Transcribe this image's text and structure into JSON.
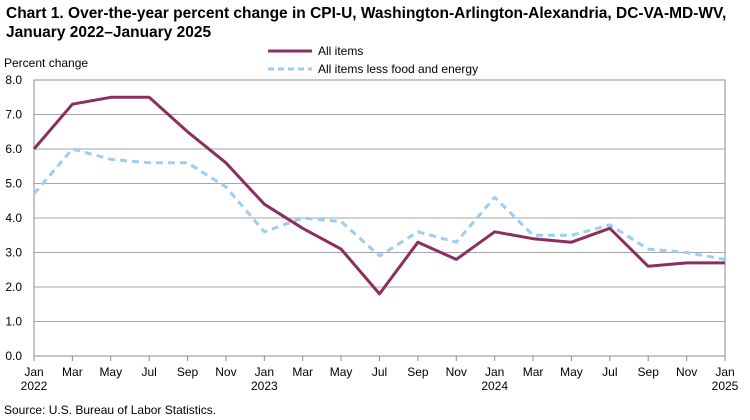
{
  "title": "Chart 1. Over-the-year percent change in CPI-U, Washington-Arlington-Alexandria,  DC-VA-MD-WV, January 2022–January 2025",
  "source": "Source: U.S. Bureau of Labor Statistics.",
  "chart_data": {
    "type": "line",
    "title": "Chart 1. Over-the-year percent change in CPI-U, Washington-Arlington-Alexandria,  DC-VA-MD-WV, January 2022–January 2025",
    "ylabel": "Percent change",
    "xlabel": "",
    "ylim": [
      0,
      8
    ],
    "yticks": [
      "0.0",
      "1.0",
      "2.0",
      "3.0",
      "4.0",
      "5.0",
      "6.0",
      "7.0",
      "8.0"
    ],
    "grid": true,
    "legend_position": "top-center",
    "x": [
      "Jan 2022",
      "Mar 2022",
      "May 2022",
      "Jul 2022",
      "Sep 2022",
      "Nov 2022",
      "Jan 2023",
      "Mar 2023",
      "May 2023",
      "Jul 2023",
      "Sep 2023",
      "Nov 2023",
      "Jan 2024",
      "Mar 2024",
      "May 2024",
      "Jul 2024",
      "Sep 2024",
      "Nov 2024",
      "Jan 2025"
    ],
    "xticks": [
      {
        "month": "Jan",
        "year": "2022"
      },
      {
        "month": "Mar",
        "year": ""
      },
      {
        "month": "May",
        "year": ""
      },
      {
        "month": "Jul",
        "year": ""
      },
      {
        "month": "Sep",
        "year": ""
      },
      {
        "month": "Nov",
        "year": ""
      },
      {
        "month": "Jan",
        "year": "2023"
      },
      {
        "month": "Mar",
        "year": ""
      },
      {
        "month": "May",
        "year": ""
      },
      {
        "month": "Jul",
        "year": ""
      },
      {
        "month": "Sep",
        "year": ""
      },
      {
        "month": "Nov",
        "year": ""
      },
      {
        "month": "Jan",
        "year": "2024"
      },
      {
        "month": "Mar",
        "year": ""
      },
      {
        "month": "May",
        "year": ""
      },
      {
        "month": "Jul",
        "year": ""
      },
      {
        "month": "Sep",
        "year": ""
      },
      {
        "month": "Nov",
        "year": ""
      },
      {
        "month": "Jan",
        "year": "2025"
      }
    ],
    "series": [
      {
        "name": "All items",
        "color": "#8b2f5f",
        "style": "solid",
        "values": [
          6.0,
          7.3,
          7.5,
          7.5,
          6.5,
          5.6,
          4.4,
          3.7,
          3.1,
          1.8,
          3.3,
          2.8,
          3.6,
          3.4,
          3.3,
          3.7,
          2.6,
          2.7,
          2.7
        ]
      },
      {
        "name": "All items less food and energy",
        "color": "#9dcdf0",
        "style": "dashed",
        "values": [
          4.7,
          6.0,
          5.7,
          5.6,
          5.6,
          4.9,
          3.6,
          4.0,
          3.9,
          2.9,
          3.6,
          3.3,
          4.6,
          3.5,
          3.5,
          3.8,
          3.1,
          3.0,
          2.8
        ]
      }
    ]
  }
}
